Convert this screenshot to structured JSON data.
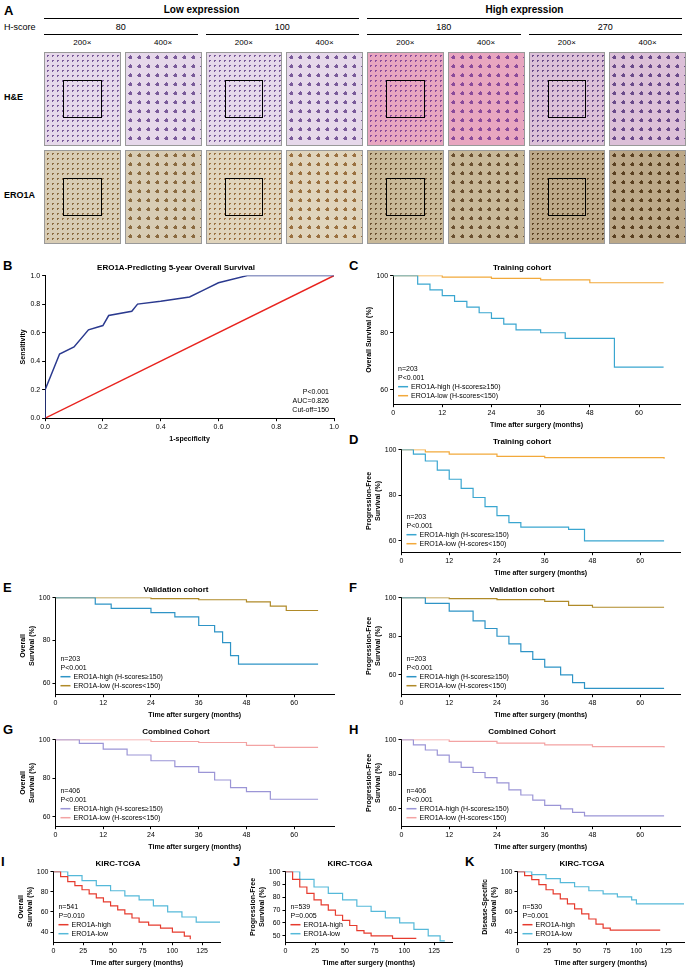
{
  "panel_a": {
    "label": "A",
    "groups": [
      {
        "title": "Low expression",
        "scores": [
          80,
          100
        ]
      },
      {
        "title": "High expression",
        "scores": [
          180,
          270
        ]
      }
    ],
    "score_label": "H-score",
    "magnifications": [
      "200×",
      "400×"
    ],
    "rows": [
      "H&E",
      "ERO1A"
    ]
  },
  "chart_data": [
    {
      "label": "B",
      "type": "roc",
      "title": "ERO1A-Predicting 5-year Overall Survival",
      "x_label": "1-specificity",
      "y_label": "Sensitivity",
      "xlim": [
        0,
        1
      ],
      "ylim": [
        0,
        1
      ],
      "xticks": [
        {
          "value": 0,
          "label": "0.0"
        },
        {
          "value": 0.2,
          "label": "0.2"
        },
        {
          "value": 0.4,
          "label": "0.4"
        },
        {
          "value": 0.6,
          "label": "0.6"
        },
        {
          "value": 0.8,
          "label": "0.8"
        },
        {
          "value": 1,
          "label": "1.0"
        }
      ],
      "yticks": [
        {
          "value": 0,
          "label": "0.0"
        },
        {
          "value": 0.2,
          "label": "0.2"
        },
        {
          "value": 0.4,
          "label": "0.4"
        },
        {
          "value": 0.6,
          "label": "0.6"
        },
        {
          "value": 0.8,
          "label": "0.8"
        },
        {
          "value": 1,
          "label": "1.0"
        }
      ],
      "grid": false,
      "annotations": [
        "P<0.001",
        "AUC=0.826",
        "Cut-off=150"
      ],
      "series": [
        {
          "color": "#2b3a8f",
          "x": [
            0,
            0,
            0.02,
            0.05,
            0.1,
            0.15,
            0.2,
            0.22,
            0.3,
            0.32,
            0.4,
            0.5,
            0.55,
            0.6,
            0.7,
            1
          ],
          "values": [
            0,
            0.2,
            0.3,
            0.45,
            0.5,
            0.62,
            0.65,
            0.72,
            0.75,
            0.8,
            0.82,
            0.85,
            0.9,
            0.95,
            1,
            1
          ]
        },
        {
          "color": "#e8231e",
          "x": [
            0,
            1
          ],
          "values": [
            0,
            1
          ]
        }
      ]
    },
    {
      "label": "C",
      "type": "survival",
      "title": "Training cohort",
      "x_label": "Time after surgery (months)",
      "y_label": "Overall Survival (%)",
      "xlim": [
        0,
        70
      ],
      "ylim": [
        55,
        100
      ],
      "xticks": [
        0,
        12,
        24,
        36,
        48,
        60
      ],
      "yticks": [
        60,
        80,
        100
      ],
      "grid": false,
      "legend": "lower left",
      "annotations": [
        "n=203",
        "P<0.001"
      ],
      "series": [
        {
          "name": "ERO1A-high (H-scores≥150)",
          "color": "#3aa6d0",
          "x": [
            0,
            6,
            9,
            12,
            15,
            18,
            21,
            24,
            27,
            30,
            36,
            42,
            54,
            66
          ],
          "values": [
            100,
            97,
            95,
            93,
            91,
            89,
            87,
            85,
            83,
            81,
            80,
            78,
            68,
            68
          ]
        },
        {
          "name": "ERO1A-low (H-scores<150)",
          "color": "#f2a93b",
          "x": [
            0,
            12,
            24,
            36,
            48,
            66
          ],
          "values": [
            100,
            99.5,
            99,
            98.5,
            97.5,
            97.5
          ]
        }
      ]
    },
    {
      "label": "D",
      "type": "survival",
      "title": "Training cohort",
      "x_label": "Time after surgery (months)",
      "y_label": "Progression-Free Survival (%)",
      "xlim": [
        0,
        70
      ],
      "ylim": [
        55,
        100
      ],
      "xticks": [
        0,
        12,
        24,
        36,
        48,
        60
      ],
      "yticks": [
        60,
        80,
        100
      ],
      "grid": false,
      "legend": "lower left",
      "annotations": [
        "n=203",
        "P<0.001"
      ],
      "series": [
        {
          "name": "ERO1A-high (H-scores≥150)",
          "color": "#3aa6d0",
          "x": [
            0,
            3,
            6,
            9,
            12,
            15,
            18,
            21,
            24,
            27,
            30,
            42,
            46,
            66
          ],
          "values": [
            100,
            98,
            95,
            91,
            87,
            83,
            79,
            75,
            71,
            68,
            66,
            65,
            60,
            60
          ]
        },
        {
          "name": "ERO1A-low (H-scores<150)",
          "color": "#f2a93b",
          "x": [
            0,
            6,
            12,
            24,
            36,
            66
          ],
          "values": [
            100,
            99,
            98,
            97,
            96.5,
            96
          ]
        }
      ]
    },
    {
      "label": "E",
      "type": "survival",
      "title": "Validation cohort",
      "x_label": "Time after surgery (months)",
      "y_label": "Overall Survival (%)",
      "xlim": [
        0,
        70
      ],
      "ylim": [
        55,
        100
      ],
      "xticks": [
        0,
        12,
        24,
        36,
        48,
        60
      ],
      "yticks": [
        60,
        80,
        100
      ],
      "grid": false,
      "legend": "lower left",
      "annotations": [
        "n=203",
        "P<0.001"
      ],
      "series": [
        {
          "name": "ERO1A-high (H-scores≥150)",
          "color": "#2e94c6",
          "x": [
            0,
            10,
            14,
            24,
            30,
            36,
            40,
            42,
            44,
            46,
            66
          ],
          "values": [
            100,
            97,
            95,
            93,
            91,
            87,
            84,
            79,
            73,
            69,
            69
          ]
        },
        {
          "name": "ERO1A-low (H-scores<150)",
          "color": "#b08a28",
          "x": [
            0,
            24,
            36,
            48,
            54,
            58,
            66
          ],
          "values": [
            100,
            99.5,
            99,
            98,
            96,
            94,
            94
          ]
        }
      ]
    },
    {
      "label": "F",
      "type": "survival",
      "title": "Validation cohort",
      "x_label": "Time after surgery (months)",
      "y_label": "Progression-Free Survival (%)",
      "xlim": [
        0,
        70
      ],
      "ylim": [
        50,
        100
      ],
      "xticks": [
        0,
        12,
        24,
        36,
        48,
        60
      ],
      "yticks": [
        60,
        80,
        100
      ],
      "grid": false,
      "legend": "lower left",
      "annotations": [
        "n=203",
        "P<0.001"
      ],
      "series": [
        {
          "name": "ERO1A-high (H-scores≥150)",
          "color": "#2e94c6",
          "x": [
            0,
            6,
            12,
            18,
            21,
            24,
            27,
            30,
            33,
            36,
            40,
            43,
            46,
            66
          ],
          "values": [
            100,
            97,
            93,
            88,
            84,
            80,
            76,
            72,
            68,
            64,
            60,
            56,
            53,
            53
          ]
        },
        {
          "name": "ERO1A-low (H-scores<150)",
          "color": "#b08a28",
          "x": [
            0,
            12,
            24,
            36,
            42,
            48,
            66
          ],
          "values": [
            100,
            99.5,
            99,
            98,
            96,
            95,
            95
          ]
        }
      ]
    },
    {
      "label": "G",
      "type": "survival",
      "title": "Combined Cohort",
      "x_label": "Time after surgery (months)",
      "y_label": "Overall Survival (%)",
      "xlim": [
        0,
        70
      ],
      "ylim": [
        55,
        100
      ],
      "xticks": [
        0,
        12,
        24,
        36,
        48,
        60
      ],
      "yticks": [
        60,
        80,
        100
      ],
      "grid": false,
      "legend": "lower left",
      "annotations": [
        "n=406",
        "P<0.001"
      ],
      "series": [
        {
          "name": "ERO1A-high (H-scores≥150)",
          "color": "#9b95d6",
          "x": [
            0,
            6,
            12,
            18,
            24,
            30,
            36,
            40,
            44,
            48,
            54,
            66
          ],
          "values": [
            100,
            98,
            95,
            92,
            89,
            86,
            83,
            79,
            75,
            73,
            69,
            69
          ]
        },
        {
          "name": "ERO1A-low (H-scores<150)",
          "color": "#f3a3a3",
          "x": [
            0,
            24,
            36,
            48,
            55,
            66
          ],
          "values": [
            100,
            99,
            98.5,
            97,
            96,
            96
          ]
        }
      ]
    },
    {
      "label": "H",
      "type": "survival",
      "title": "Combined Cohort",
      "x_label": "Time after surgery (months)",
      "y_label": "Progression-Free Survival (%)",
      "xlim": [
        0,
        70
      ],
      "ylim": [
        50,
        100
      ],
      "xticks": [
        0,
        12,
        24,
        36,
        48,
        60
      ],
      "yticks": [
        60,
        80,
        100
      ],
      "grid": false,
      "legend": "lower left",
      "annotations": [
        "n=406",
        "P<0.001"
      ],
      "series": [
        {
          "name": "ERO1A-high (H-scores≥150)",
          "color": "#9b95d6",
          "x": [
            0,
            3,
            6,
            9,
            12,
            15,
            18,
            21,
            24,
            27,
            30,
            33,
            36,
            40,
            43,
            46,
            66
          ],
          "values": [
            100,
            97,
            94,
            91,
            87,
            84,
            81,
            78,
            75,
            71,
            68,
            65,
            62,
            60,
            58,
            56,
            56
          ]
        },
        {
          "name": "ERO1A-low (H-scores<150)",
          "color": "#f3a3a3",
          "x": [
            0,
            12,
            24,
            36,
            48,
            66
          ],
          "values": [
            100,
            99,
            98,
            97,
            96,
            95.5
          ]
        }
      ]
    },
    {
      "label": "I",
      "type": "survival",
      "title": "KIRC-TCGA",
      "x_label": "Time after surgery (months)",
      "y_label": "Overall Survival (%)",
      "xlim": [
        0,
        140
      ],
      "ylim": [
        30,
        100
      ],
      "xticks": [
        0,
        25,
        50,
        75,
        100,
        125
      ],
      "yticks": [
        40,
        60,
        80,
        100
      ],
      "grid": false,
      "legend": "lower left",
      "annotations": [
        "n=541",
        "P=0.010"
      ],
      "series": [
        {
          "name": "ERO1A-high",
          "color": "#e63b2e",
          "x": [
            0,
            6,
            12,
            18,
            24,
            30,
            36,
            42,
            48,
            54,
            60,
            66,
            72,
            80,
            90,
            100,
            110,
            115
          ],
          "values": [
            100,
            95,
            90,
            86,
            82,
            78,
            74,
            70,
            66,
            62,
            58,
            54,
            50,
            47,
            44,
            40,
            36,
            33
          ]
        },
        {
          "name": "ERO1A-low",
          "color": "#55b9d9",
          "x": [
            0,
            12,
            24,
            36,
            48,
            60,
            72,
            84,
            96,
            108,
            120,
            140
          ],
          "values": [
            100,
            96,
            91,
            86,
            81,
            76,
            72,
            66,
            60,
            55,
            50,
            50
          ]
        }
      ]
    },
    {
      "label": "J",
      "type": "survival",
      "title": "KIRC-TCGA",
      "x_label": "Time after surgery (months)",
      "y_label": "Progression-Free Survival (%)",
      "xlim": [
        0,
        140
      ],
      "ylim": [
        45,
        100
      ],
      "xticks": [
        0,
        25,
        50,
        75,
        100,
        125
      ],
      "yticks": [
        50,
        60,
        70,
        80,
        90,
        100
      ],
      "grid": false,
      "legend": "lower left",
      "annotations": [
        "n=539",
        "P=0.005"
      ],
      "series": [
        {
          "name": "ERO1A-high",
          "color": "#e63b2e",
          "x": [
            0,
            6,
            12,
            18,
            24,
            30,
            36,
            42,
            48,
            54,
            60,
            66,
            72,
            90,
            110
          ],
          "values": [
            100,
            94,
            88,
            83,
            78,
            74,
            70,
            66,
            62,
            58,
            54,
            52,
            50,
            48,
            48
          ]
        },
        {
          "name": "ERO1A-low",
          "color": "#55b9d9",
          "x": [
            0,
            12,
            24,
            36,
            48,
            60,
            72,
            84,
            96,
            108,
            120,
            130,
            134
          ],
          "values": [
            100,
            94,
            88,
            83,
            78,
            73,
            69,
            64,
            60,
            55,
            50,
            46,
            46
          ]
        }
      ]
    },
    {
      "label": "K",
      "type": "survival",
      "title": "KIRC-TCGA",
      "x_label": "Time after surgery (months)",
      "y_label": "Disease-Specific Survival (%)",
      "xlim": [
        0,
        140
      ],
      "ylim": [
        30,
        100
      ],
      "xticks": [
        0,
        25,
        50,
        75,
        100,
        125
      ],
      "yticks": [
        40,
        60,
        80,
        100
      ],
      "grid": false,
      "legend": "lower left",
      "annotations": [
        "n=530",
        "P=0.001"
      ],
      "series": [
        {
          "name": "ERO1A-high",
          "color": "#e63b2e",
          "x": [
            0,
            6,
            12,
            18,
            24,
            30,
            36,
            42,
            48,
            54,
            60,
            66,
            72,
            78,
            90,
            120
          ],
          "values": [
            100,
            96,
            92,
            87,
            82,
            78,
            73,
            68,
            63,
            58,
            53,
            48,
            44,
            42,
            42,
            42
          ]
        },
        {
          "name": "ERO1A-low",
          "color": "#55b9d9",
          "x": [
            0,
            12,
            24,
            36,
            48,
            60,
            72,
            84,
            96,
            100,
            110,
            140
          ],
          "values": [
            100,
            97,
            93,
            89,
            85,
            81,
            78,
            75,
            72,
            68,
            68,
            68
          ]
        }
      ]
    }
  ]
}
